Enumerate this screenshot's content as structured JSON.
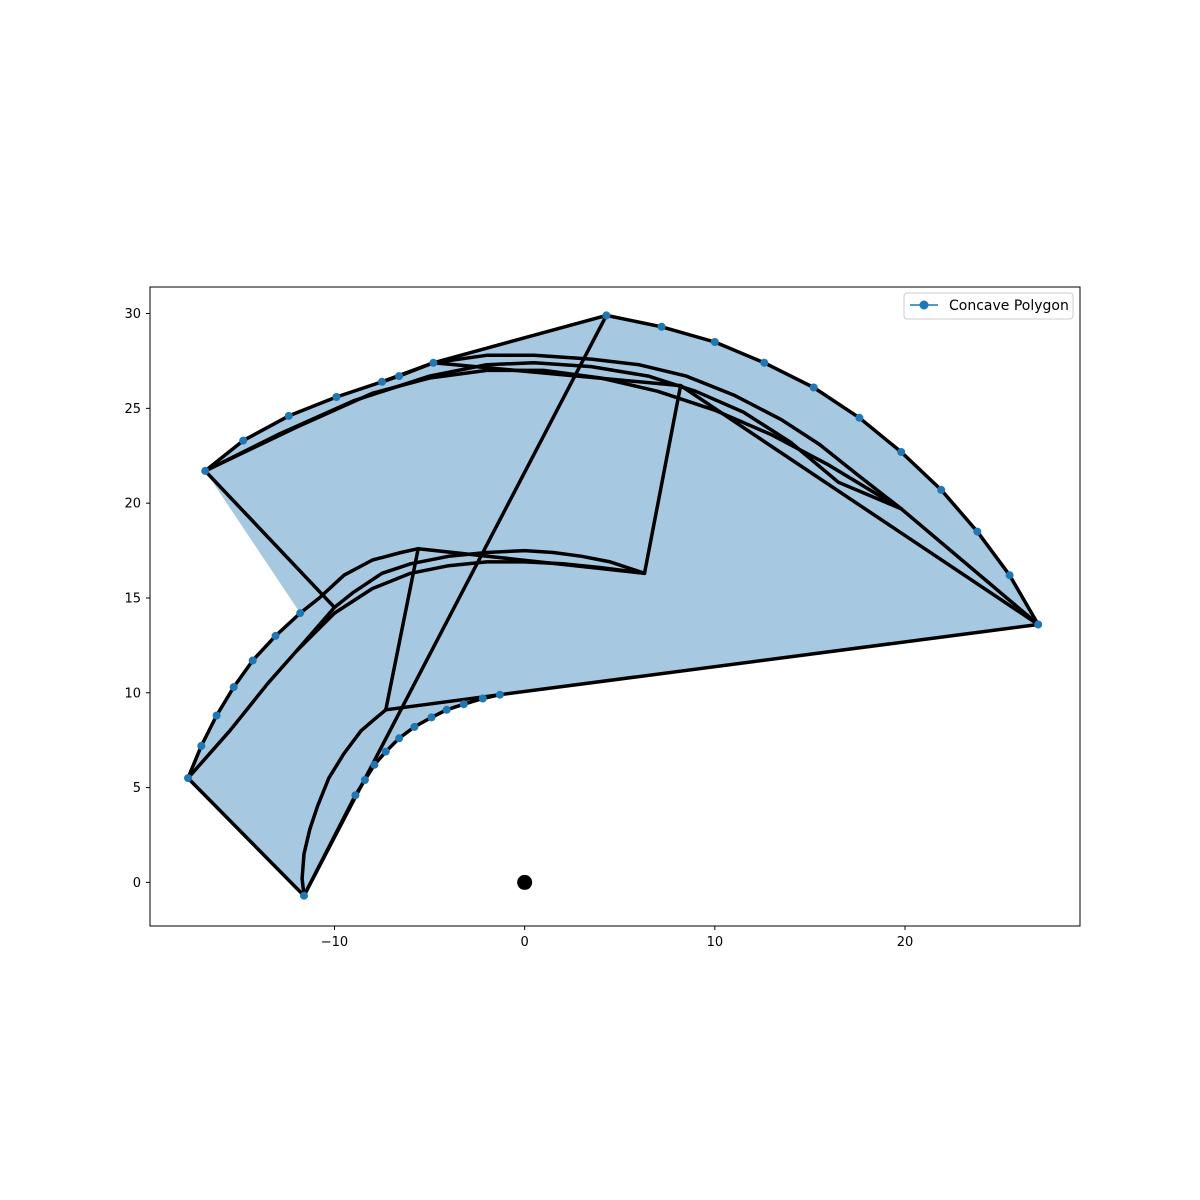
{
  "chart_data": {
    "type": "scatter",
    "title": "",
    "xlabel": "",
    "ylabel": "",
    "xlim": [
      -19.7,
      29.2
    ],
    "ylim": [
      -2.3,
      31.4
    ],
    "x_ticks": [
      -10,
      0,
      10,
      20
    ],
    "y_ticks": [
      0,
      5,
      10,
      15,
      20,
      25,
      30
    ],
    "x_tick_labels": [
      "−10",
      "0",
      "10",
      "20"
    ],
    "y_tick_labels": [
      "0",
      "5",
      "10",
      "15",
      "20",
      "25",
      "30"
    ],
    "grid": false,
    "legend": {
      "position": "top-right",
      "entries": [
        "Concave Polygon"
      ]
    },
    "colors": {
      "fill": "#a6c8e0",
      "vertex": "#1f77b4",
      "edge": "#000000"
    },
    "series": [
      {
        "name": "Concave Polygon",
        "vertices": [
          [
            4.3,
            29.9
          ],
          [
            7.2,
            29.3
          ],
          [
            10.0,
            28.5
          ],
          [
            12.6,
            27.4
          ],
          [
            15.2,
            26.1
          ],
          [
            17.6,
            24.5
          ],
          [
            19.8,
            22.7
          ],
          [
            21.9,
            20.7
          ],
          [
            23.8,
            18.5
          ],
          [
            25.5,
            16.2
          ],
          [
            27.0,
            13.6
          ],
          [
            -1.3,
            9.9
          ],
          [
            -2.2,
            9.7
          ],
          [
            -3.2,
            9.4
          ],
          [
            -4.1,
            9.1
          ],
          [
            -4.9,
            8.7
          ],
          [
            -5.8,
            8.2
          ],
          [
            -6.6,
            7.6
          ],
          [
            -7.3,
            6.9
          ],
          [
            -7.9,
            6.2
          ],
          [
            -8.4,
            5.4
          ],
          [
            -8.9,
            4.6
          ],
          [
            -11.6,
            -0.7
          ],
          [
            -17.7,
            5.5
          ],
          [
            -17.0,
            7.2
          ],
          [
            -16.2,
            8.8
          ],
          [
            -15.3,
            10.3
          ],
          [
            -14.3,
            11.7
          ],
          [
            -13.1,
            13.0
          ],
          [
            -11.8,
            14.2
          ],
          [
            -16.8,
            21.7
          ],
          [
            -14.8,
            23.3
          ],
          [
            -12.4,
            24.6
          ],
          [
            -9.9,
            25.6
          ],
          [
            -7.5,
            26.4
          ],
          [
            -6.6,
            26.7
          ],
          [
            -4.8,
            27.4
          ]
        ]
      }
    ],
    "edge_lines": [
      [
        [
          4.3,
          29.9
        ],
        [
          7.2,
          29.3
        ],
        [
          10.0,
          28.5
        ],
        [
          12.6,
          27.4
        ],
        [
          15.2,
          26.1
        ],
        [
          17.6,
          24.5
        ],
        [
          19.8,
          22.7
        ],
        [
          21.9,
          20.7
        ],
        [
          23.8,
          18.5
        ],
        [
          25.5,
          16.2
        ],
        [
          27.0,
          13.6
        ]
      ],
      [
        [
          27.0,
          13.6
        ],
        [
          -1.3,
          9.9
        ],
        [
          -2.2,
          9.7
        ],
        [
          -3.2,
          9.4
        ],
        [
          -4.1,
          9.1
        ],
        [
          -4.9,
          8.7
        ],
        [
          -5.8,
          8.2
        ],
        [
          -6.6,
          7.6
        ],
        [
          -7.3,
          6.9
        ],
        [
          -7.9,
          6.2
        ],
        [
          -8.4,
          5.4
        ],
        [
          -8.9,
          4.6
        ],
        [
          -11.6,
          -0.7
        ]
      ],
      [
        [
          -11.6,
          -0.7
        ],
        [
          -17.7,
          5.5
        ],
        [
          -17.0,
          7.2
        ],
        [
          -16.2,
          8.8
        ],
        [
          -15.3,
          10.3
        ],
        [
          -14.3,
          11.7
        ],
        [
          -13.1,
          13.0
        ],
        [
          -11.8,
          14.2
        ],
        [
          -10.8,
          15.0
        ],
        [
          -9.5,
          16.2
        ],
        [
          -8.0,
          17.0
        ],
        [
          -6.5,
          17.4
        ],
        [
          -5.6,
          17.6
        ]
      ],
      [
        [
          -16.8,
          21.7
        ],
        [
          -14.8,
          23.3
        ],
        [
          -12.4,
          24.6
        ],
        [
          -9.9,
          25.6
        ],
        [
          -7.5,
          26.4
        ],
        [
          -6.6,
          26.7
        ],
        [
          -4.8,
          27.4
        ],
        [
          4.3,
          29.9
        ]
      ],
      [
        [
          -16.8,
          21.7
        ],
        [
          -10.0,
          14.5
        ]
      ],
      [
        [
          -16.8,
          21.7
        ],
        [
          -13.0,
          23.6
        ],
        [
          -9.0,
          25.4
        ],
        [
          -5.0,
          26.7
        ],
        [
          -2.0,
          27.3
        ],
        [
          0.5,
          27.4
        ],
        [
          3.5,
          27.2
        ],
        [
          6.5,
          26.7
        ],
        [
          9.0,
          25.9
        ],
        [
          11.5,
          24.8
        ],
        [
          14.0,
          23.2
        ],
        [
          16.5,
          21.1
        ],
        [
          19.8,
          19.7
        ],
        [
          27.0,
          13.6
        ]
      ],
      [
        [
          -16.8,
          21.7
        ],
        [
          -12.0,
          24.0
        ],
        [
          -8.0,
          25.8
        ],
        [
          -5.0,
          26.6
        ],
        [
          -2.0,
          27.0
        ],
        [
          1.0,
          27.0
        ],
        [
          4.0,
          26.6
        ],
        [
          7.0,
          25.9
        ],
        [
          10.0,
          24.9
        ],
        [
          13.0,
          23.6
        ],
        [
          16.0,
          22.0
        ],
        [
          19.8,
          19.7
        ]
      ],
      [
        [
          -7.5,
          26.4
        ],
        [
          -4.8,
          27.4
        ],
        [
          -2.0,
          27.8
        ],
        [
          0.5,
          27.8
        ],
        [
          3.5,
          27.6
        ],
        [
          6.0,
          27.3
        ],
        [
          8.5,
          26.7
        ],
        [
          11.0,
          25.7
        ],
        [
          13.5,
          24.4
        ],
        [
          15.5,
          23.1
        ],
        [
          17.5,
          21.5
        ],
        [
          19.8,
          19.7
        ]
      ],
      [
        [
          4.3,
          29.9
        ],
        [
          -11.6,
          -0.7
        ]
      ],
      [
        [
          8.2,
          26.2
        ],
        [
          6.3,
          16.3
        ]
      ],
      [
        [
          -4.8,
          27.4
        ],
        [
          8.2,
          26.2
        ],
        [
          27.0,
          13.6
        ]
      ],
      [
        [
          -5.6,
          17.6
        ],
        [
          6.3,
          16.3
        ]
      ],
      [
        [
          -5.6,
          17.6
        ],
        [
          -7.3,
          9.1
        ]
      ],
      [
        [
          -7.3,
          9.1
        ],
        [
          -1.3,
          9.9
        ]
      ],
      [
        [
          -10.0,
          14.5
        ],
        [
          -9.0,
          15.3
        ],
        [
          -7.5,
          16.3
        ],
        [
          -6.0,
          16.8
        ],
        [
          -4.0,
          17.2
        ],
        [
          -2.0,
          17.4
        ],
        [
          0.0,
          17.5
        ],
        [
          1.5,
          17.4
        ],
        [
          3.0,
          17.2
        ],
        [
          4.5,
          16.9
        ],
        [
          6.3,
          16.3
        ]
      ],
      [
        [
          -10.0,
          14.5
        ],
        [
          -12.0,
          12.2
        ],
        [
          -13.5,
          10.5
        ],
        [
          -15.5,
          8.0
        ],
        [
          -17.7,
          5.5
        ]
      ],
      [
        [
          -12.0,
          12.2
        ],
        [
          -10.0,
          14.2
        ],
        [
          -8.0,
          15.5
        ],
        [
          -6.0,
          16.3
        ],
        [
          -4.0,
          16.7
        ],
        [
          -2.0,
          16.9
        ],
        [
          0.0,
          16.9
        ],
        [
          2.0,
          16.8
        ],
        [
          4.0,
          16.6
        ],
        [
          6.3,
          16.3
        ]
      ],
      [
        [
          -11.6,
          -0.7
        ],
        [
          -11.7,
          0.2
        ],
        [
          -11.6,
          1.5
        ],
        [
          -11.3,
          2.8
        ],
        [
          -10.9,
          4.0
        ],
        [
          -10.3,
          5.5
        ],
        [
          -9.5,
          6.8
        ],
        [
          -8.6,
          8.0
        ],
        [
          -7.9,
          8.6
        ],
        [
          -7.3,
          9.1
        ]
      ]
    ],
    "origin_marker": [
      0,
      0
    ]
  }
}
